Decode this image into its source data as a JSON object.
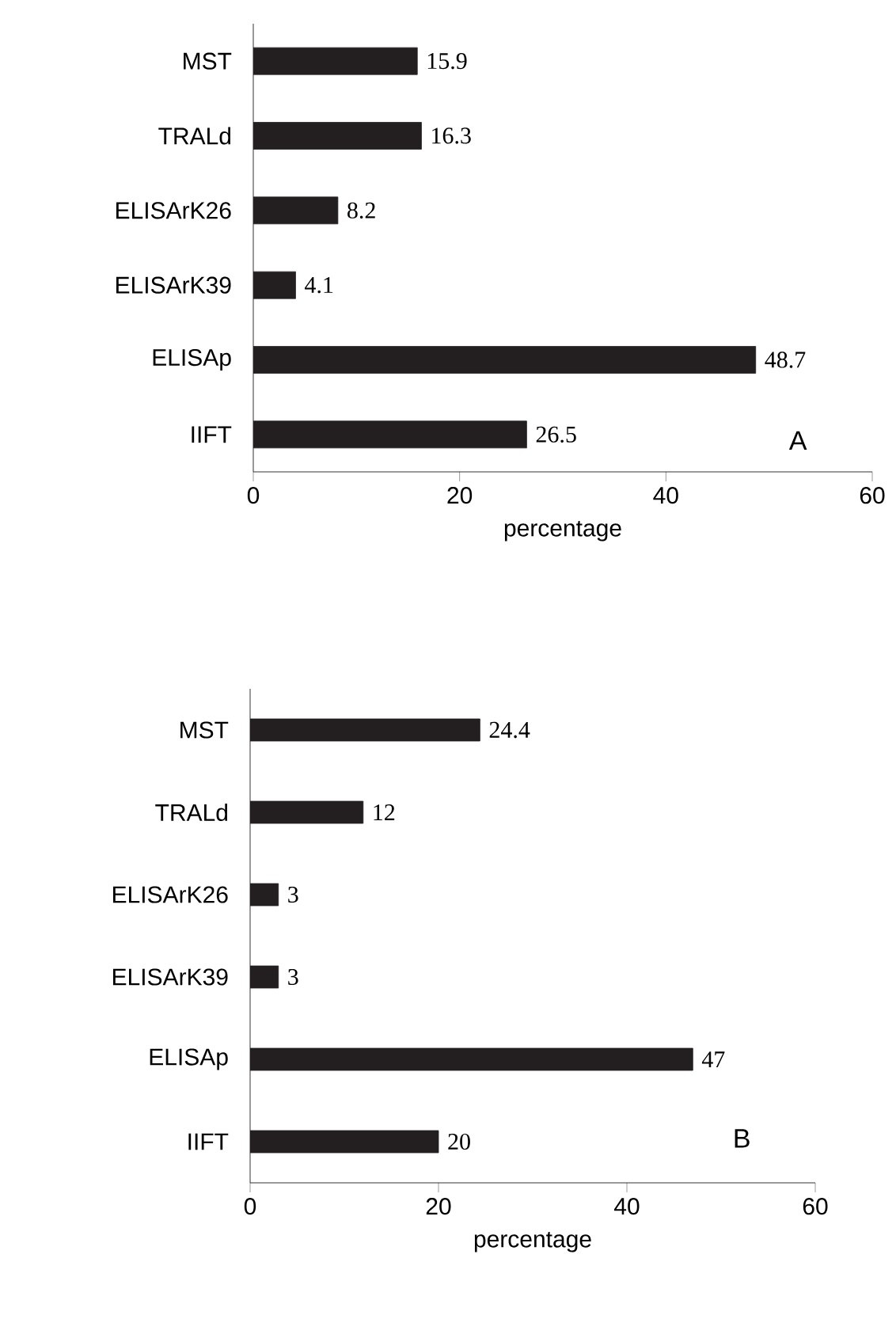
{
  "chart_data": [
    {
      "type": "bar",
      "orientation": "horizontal",
      "categories": [
        "MST",
        "TRALd",
        "ELISArK26",
        "ELISArK39",
        "ELISAp",
        "IIFT"
      ],
      "values": [
        15.9,
        16.3,
        8.2,
        4.1,
        48.7,
        26.5
      ],
      "color": "#231f20",
      "xlim": [
        0,
        60
      ],
      "xticks": [
        0,
        20,
        40,
        60
      ],
      "xlabel": "percentage",
      "annotations": [
        "A"
      ],
      "data_labels": true
    },
    {
      "type": "bar",
      "orientation": "horizontal",
      "categories": [
        "MST",
        "TRALd",
        "ELISArK26",
        "ELISArK39",
        "ELISAp",
        "IIFT"
      ],
      "values": [
        24.4,
        12,
        3,
        3,
        47,
        20
      ],
      "color": "#231f20",
      "xlim": [
        0,
        60
      ],
      "xticks": [
        0,
        20,
        40,
        60
      ],
      "xlabel": "percentage",
      "annotations": [
        "B"
      ],
      "data_labels": true
    }
  ]
}
